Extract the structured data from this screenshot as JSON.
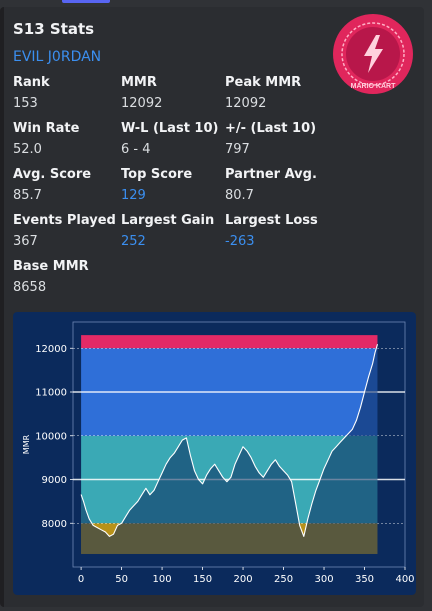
{
  "title": "S13 Stats",
  "player_name": "EVIL J0RDAN",
  "stats": [
    {
      "label": "Rank",
      "value": "153",
      "link": false
    },
    {
      "label": "MMR",
      "value": "12092",
      "link": false
    },
    {
      "label": "Peak MMR",
      "value": "12092",
      "link": false
    },
    {
      "label": "Win Rate",
      "value": "52.0",
      "link": false
    },
    {
      "label": "W-L (Last 10)",
      "value": "6 - 4",
      "link": false
    },
    {
      "label": "+/- (Last 10)",
      "value": "797",
      "link": false
    },
    {
      "label": "Avg. Score",
      "value": "85.7",
      "link": false
    },
    {
      "label": "Top Score",
      "value": "129",
      "link": true
    },
    {
      "label": "Partner Avg.",
      "value": "80.7",
      "link": false
    },
    {
      "label": "Events Played",
      "value": "367",
      "link": false
    },
    {
      "label": "Largest Gain",
      "value": "252",
      "link": true
    },
    {
      "label": "Largest Loss",
      "value": "-263",
      "link": true
    },
    {
      "label": "Base MMR",
      "value": "8658",
      "link": false
    }
  ],
  "logo": {
    "icon": "lightning-bolt-icon",
    "text": "MARIO KART",
    "color": "#e0265c"
  },
  "colors": {
    "background": "#2b2d31",
    "title": "#f2f3f5",
    "link": "#3b8ff0",
    "chart_bg": "#0b2a5c",
    "line": "#ffffff"
  },
  "chart_data": {
    "type": "line",
    "ylabel": "MMR",
    "xlim": [
      -10,
      400
    ],
    "ylim": [
      7000,
      12600
    ],
    "xticks": [
      0,
      50,
      100,
      150,
      200,
      250,
      300,
      350,
      400
    ],
    "yticks": [
      8000,
      9000,
      10000,
      11000,
      12000
    ],
    "bands": [
      {
        "from": 7300,
        "to": 8000,
        "color": "#b8921a"
      },
      {
        "from": 8000,
        "to": 10000,
        "color": "#3aa9b5"
      },
      {
        "from": 10000,
        "to": 12000,
        "color": "#2f6fd8"
      },
      {
        "from": 12000,
        "to": 12300,
        "color": "#e32a66"
      }
    ],
    "series": [
      {
        "x": [
          0,
          3,
          6,
          10,
          15,
          20,
          25,
          30,
          35,
          40,
          45,
          50,
          55,
          60,
          65,
          70,
          75,
          80,
          85,
          90,
          95,
          100,
          105,
          110,
          115,
          120,
          125,
          130,
          135,
          140,
          145,
          150,
          155,
          160,
          165,
          170,
          175,
          180,
          185,
          190,
          195,
          200,
          205,
          210,
          215,
          220,
          225,
          230,
          235,
          240,
          245,
          250,
          255,
          260,
          265,
          270,
          275,
          280,
          285,
          290,
          295,
          300,
          305,
          310,
          315,
          320,
          325,
          330,
          335,
          340,
          345,
          350,
          355,
          360,
          363,
          366
        ],
        "y": [
          8658,
          8500,
          8300,
          8100,
          7950,
          7900,
          7850,
          7800,
          7700,
          7750,
          7950,
          8000,
          8150,
          8300,
          8400,
          8500,
          8650,
          8800,
          8650,
          8750,
          8950,
          9150,
          9350,
          9500,
          9600,
          9750,
          9900,
          9950,
          9550,
          9200,
          9000,
          8900,
          9100,
          9250,
          9350,
          9200,
          9050,
          8950,
          9050,
          9350,
          9550,
          9750,
          9650,
          9500,
          9300,
          9150,
          9050,
          9200,
          9350,
          9450,
          9300,
          9200,
          9100,
          8950,
          8450,
          7950,
          7700,
          8100,
          8450,
          8750,
          9000,
          9250,
          9450,
          9650,
          9750,
          9850,
          9950,
          10050,
          10150,
          10350,
          10650,
          11000,
          11350,
          11650,
          11900,
          12092
        ]
      }
    ]
  }
}
